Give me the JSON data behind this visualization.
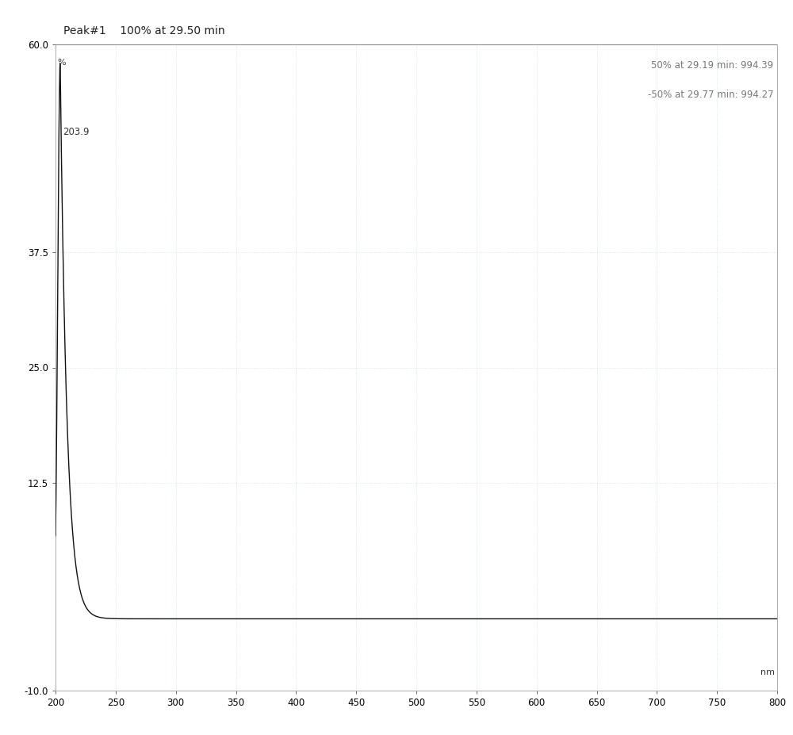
{
  "title_line1": "Peak#1    100% at 29.50 min",
  "annotation_top_right_1": "50% at 29.19 min: 994.39",
  "annotation_top_right_2": "-50% at 29.77 min: 994.27",
  "y_label": "%",
  "x_label": "nm",
  "x_min": 200,
  "x_max": 800,
  "y_min": -10.0,
  "y_max": 60.0,
  "y_ticks": [
    60.0,
    37.5,
    25.0,
    12.5,
    -10.0
  ],
  "x_ticks": [
    200,
    250,
    300,
    350,
    400,
    450,
    500,
    550,
    600,
    650,
    700,
    750,
    800
  ],
  "peak_x": 203.9,
  "peak_y": 58.0,
  "baseline_y": -2.2,
  "curve_color": "#111111",
  "background_color": "#ffffff",
  "plot_bg_color": "#ffffff",
  "grid_color": "#c8e0e8",
  "title_fontsize": 10,
  "annotation_fontsize": 8.5,
  "axis_label_fontsize": 8,
  "tick_fontsize": 8.5,
  "decay_rate": 0.18
}
